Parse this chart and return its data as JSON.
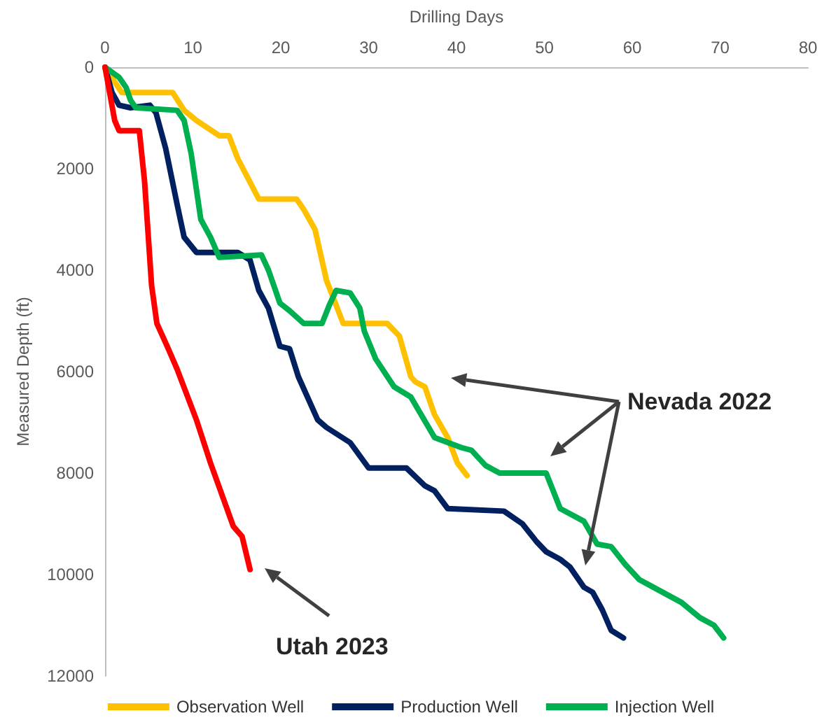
{
  "chart_data": {
    "type": "line",
    "xlabel": "Drilling Days",
    "ylabel": "Measured Depth (ft)",
    "xlim": [
      0,
      80
    ],
    "xticks": [
      0,
      10,
      20,
      30,
      40,
      50,
      60,
      70,
      80
    ],
    "ylim": [
      12000,
      0
    ],
    "yticks": [
      0,
      2000,
      4000,
      6000,
      8000,
      10000,
      12000
    ],
    "grid": false,
    "legend": "bottom",
    "marker": "none",
    "line_style": "solid",
    "annotations": [
      "Nevada 2022",
      "Utah 2023"
    ],
    "series": [
      {
        "name": "Observation Well",
        "color": "#ffc000",
        "x": [
          0,
          1.9,
          7.7,
          9.0,
          10.4,
          13.0,
          14.1,
          15.1,
          17.5,
          21.8,
          22.6,
          23.9,
          25.2,
          27.1,
          32.1,
          33.5,
          34.8,
          35.3,
          36.4,
          37.5,
          39.0,
          40.1,
          41.2
        ],
        "values": [
          0,
          500,
          500,
          850,
          1050,
          1350,
          1350,
          1800,
          2600,
          2600,
          2800,
          3200,
          4200,
          5050,
          5050,
          5300,
          6100,
          6200,
          6300,
          6850,
          7300,
          7800,
          8050
        ]
      },
      {
        "name": "Production Well",
        "color": "#002060",
        "x": [
          0,
          0.8,
          1.6,
          2.9,
          5.1,
          5.8,
          6.9,
          8.2,
          9.0,
          10.4,
          15.1,
          16.5,
          17.5,
          18.6,
          19.9,
          21.0,
          22.0,
          24.2,
          25.2,
          27.9,
          30.0,
          34.3,
          36.4,
          37.5,
          39.0,
          45.4,
          47.5,
          49.1,
          50.2,
          51.8,
          52.9,
          54.5,
          55.5,
          56.6,
          57.6,
          59.0
        ],
        "values": [
          0,
          500,
          750,
          800,
          750,
          900,
          1600,
          2700,
          3350,
          3650,
          3650,
          3800,
          4400,
          4750,
          5500,
          5550,
          6100,
          6950,
          7100,
          7400,
          7900,
          7900,
          8250,
          8350,
          8700,
          8750,
          9000,
          9350,
          9550,
          9700,
          9850,
          10250,
          10350,
          10700,
          11100,
          11250
        ]
      },
      {
        "name": "Injection Well",
        "color": "#00b050",
        "x": [
          0,
          1.6,
          2.4,
          2.9,
          3.5,
          8.2,
          9.0,
          9.8,
          10.9,
          12.0,
          13.0,
          17.8,
          18.6,
          19.9,
          21.0,
          22.6,
          24.7,
          25.5,
          26.3,
          27.9,
          29.0,
          29.5,
          30.8,
          32.9,
          34.8,
          37.5,
          40.6,
          41.7,
          43.3,
          44.9,
          50.2,
          51.8,
          54.5,
          56.0,
          57.6,
          59.2,
          60.8,
          62.4,
          65.6,
          67.7,
          69.3,
          70.4
        ],
        "values": [
          0,
          200,
          400,
          650,
          800,
          850,
          1050,
          1700,
          3000,
          3350,
          3750,
          3700,
          4000,
          4650,
          4800,
          5050,
          5050,
          4700,
          4400,
          4450,
          4750,
          5200,
          5750,
          6300,
          6500,
          7300,
          7500,
          7550,
          7850,
          8000,
          8000,
          8700,
          8950,
          9400,
          9450,
          9800,
          10100,
          10250,
          10550,
          10850,
          11000,
          11250
        ]
      },
      {
        "color": "#ff0000",
        "x": [
          0,
          1.1,
          1.6,
          3.9,
          4.5,
          5.3,
          5.9,
          7.2,
          8.2,
          10.4,
          12.0,
          14.6,
          15.6,
          16.5
        ],
        "values": [
          0,
          1050,
          1250,
          1250,
          2250,
          4300,
          5050,
          5550,
          5950,
          6950,
          7800,
          9050,
          9250,
          9900
        ]
      }
    ]
  }
}
